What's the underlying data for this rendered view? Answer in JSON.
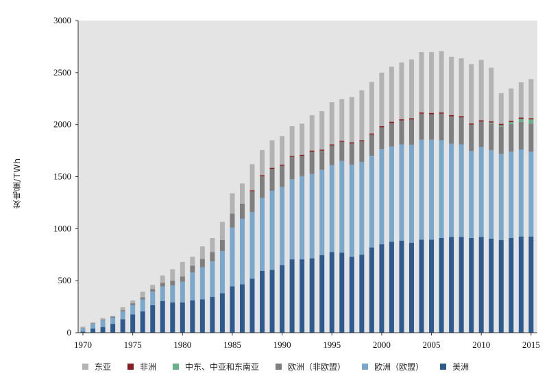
{
  "chart_data": {
    "type": "bar",
    "stacked": true,
    "ylabel": "发电量/TWh",
    "xlabel": "",
    "ylim": [
      0,
      3000
    ],
    "yticks": [
      0,
      500,
      1000,
      1500,
      2000,
      2500,
      3000
    ],
    "xticks": [
      1970,
      1975,
      1980,
      1985,
      1990,
      1995,
      2000,
      2005,
      2010,
      2015
    ],
    "grid": false,
    "legend_position": "bottom",
    "plot_background": "#e4e4e4",
    "categories": [
      1970,
      1971,
      1972,
      1973,
      1974,
      1975,
      1976,
      1977,
      1978,
      1979,
      1980,
      1981,
      1982,
      1983,
      1984,
      1985,
      1986,
      1987,
      1988,
      1989,
      1990,
      1991,
      1992,
      1993,
      1994,
      1995,
      1996,
      1997,
      1998,
      1999,
      2000,
      2001,
      2002,
      2003,
      2004,
      2005,
      2006,
      2007,
      2008,
      2009,
      2010,
      2011,
      2012,
      2013,
      2014,
      2015
    ],
    "series": [
      {
        "name": "美洲",
        "color": "#2e5b8f",
        "values": [
          10,
          40,
          55,
          85,
          130,
          175,
          205,
          265,
          305,
          290,
          290,
          310,
          320,
          345,
          380,
          445,
          465,
          520,
          595,
          605,
          650,
          705,
          705,
          715,
          745,
          775,
          770,
          730,
          750,
          820,
          850,
          875,
          885,
          865,
          895,
          895,
          910,
          920,
          920,
          910,
          920,
          905,
          890,
          910,
          925,
          925
        ]
      },
      {
        "name": "欧洲（欧盟）",
        "color": "#7aa7cc",
        "values": [
          30,
          45,
          65,
          60,
          75,
          90,
          115,
          130,
          140,
          165,
          200,
          270,
          310,
          340,
          405,
          565,
          630,
          640,
          700,
          760,
          750,
          770,
          800,
          810,
          820,
          835,
          880,
          885,
          890,
          880,
          915,
          915,
          925,
          940,
          960,
          960,
          940,
          895,
          890,
          835,
          865,
          850,
          830,
          830,
          835,
          815
        ]
      },
      {
        "name": "欧洲（非欧盟）",
        "color": "#7f7f7f",
        "values": [
          3,
          5,
          7,
          10,
          12,
          18,
          20,
          25,
          35,
          45,
          50,
          65,
          80,
          90,
          105,
          135,
          145,
          200,
          210,
          210,
          205,
          215,
          195,
          215,
          185,
          190,
          185,
          205,
          200,
          205,
          210,
          225,
          230,
          245,
          250,
          245,
          255,
          265,
          260,
          255,
          245,
          255,
          260,
          265,
          265,
          270
        ]
      },
      {
        "name": "中东、中亚和东南亚",
        "color": "#66b08a",
        "values": [
          0,
          0,
          0,
          0,
          0,
          0,
          0,
          0,
          0,
          0,
          0,
          0,
          0,
          0,
          0,
          0,
          0,
          0,
          0,
          0,
          0,
          0,
          0,
          0,
          0,
          0,
          0,
          0,
          0,
          0,
          0,
          0,
          0,
          0,
          0,
          0,
          0,
          0,
          0,
          0,
          0,
          10,
          15,
          20,
          30,
          40
        ]
      },
      {
        "name": "非洲",
        "color": "#8b1e1e",
        "values": [
          0,
          0,
          0,
          0,
          0,
          0,
          0,
          0,
          0,
          0,
          0,
          0,
          0,
          0,
          0,
          0,
          0,
          10,
          10,
          10,
          10,
          10,
          10,
          10,
          10,
          10,
          10,
          10,
          10,
          10,
          10,
          12,
          12,
          12,
          12,
          12,
          12,
          12,
          12,
          12,
          12,
          12,
          12,
          12,
          12,
          12
        ]
      },
      {
        "name": "东亚",
        "color": "#b3b3b3",
        "values": [
          15,
          10,
          13,
          5,
          28,
          27,
          55,
          40,
          70,
          110,
          140,
          85,
          120,
          135,
          175,
          195,
          195,
          250,
          240,
          265,
          275,
          285,
          300,
          340,
          370,
          405,
          400,
          435,
          480,
          495,
          515,
          530,
          545,
          565,
          580,
          585,
          590,
          560,
          555,
          570,
          580,
          515,
          295,
          310,
          340,
          375
        ]
      }
    ]
  },
  "legend": {
    "items": [
      {
        "label": "东亚",
        "color": "#b3b3b3"
      },
      {
        "label": "非洲",
        "color": "#8b1e1e"
      },
      {
        "label": "中东、中亚和东南亚",
        "color": "#66b08a"
      },
      {
        "label": "欧洲（非欧盟）",
        "color": "#7f7f7f"
      },
      {
        "label": "欧洲（欧盟）",
        "color": "#7aa7cc"
      },
      {
        "label": "美洲",
        "color": "#2e5b8f"
      }
    ]
  }
}
